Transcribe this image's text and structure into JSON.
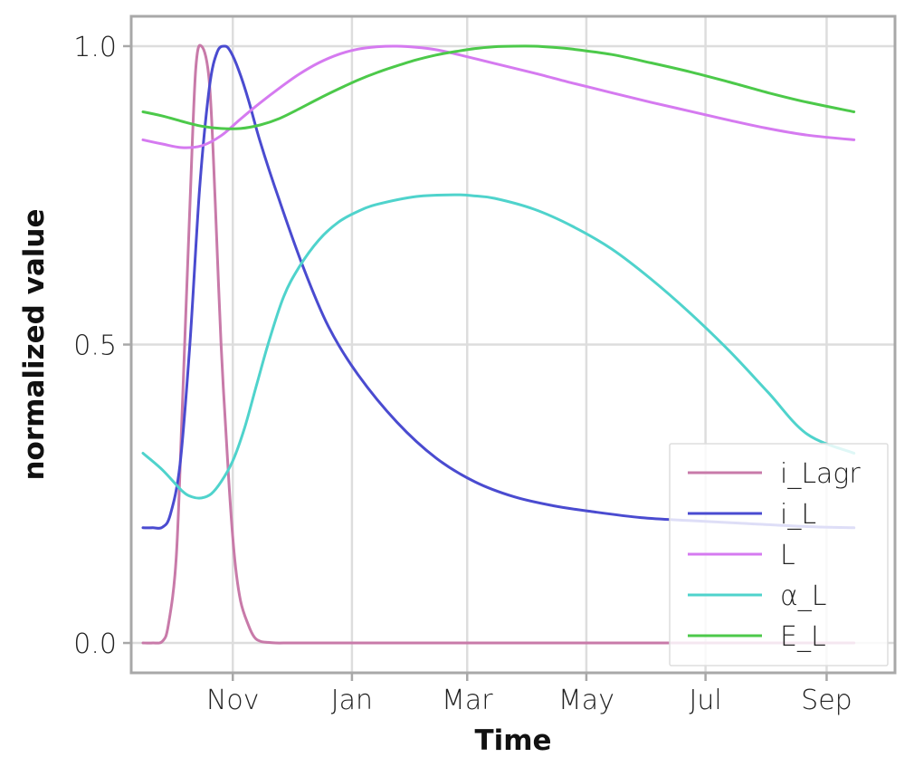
{
  "chart_data": {
    "type": "line",
    "title": "",
    "xlabel": "Time",
    "ylabel": "normalized value",
    "ylim": [
      -0.05,
      1.05
    ],
    "xlim": [
      -6,
      385
    ],
    "x_ticks": [
      {
        "label": "Nov",
        "value": 46
      },
      {
        "label": "Jan",
        "value": 107
      },
      {
        "label": "Mar",
        "value": 166
      },
      {
        "label": "May",
        "value": 227
      },
      {
        "label": "Jul",
        "value": 288
      },
      {
        "label": "Sep",
        "value": 350
      }
    ],
    "y_ticks": [
      {
        "label": "0.0",
        "value": 0.0
      },
      {
        "label": "0.5",
        "value": 0.5
      },
      {
        "label": "1.0",
        "value": 1.0
      }
    ],
    "grid": true,
    "legend_position": "bottom-right",
    "series": [
      {
        "name": "i_Lagr",
        "color": "#c87aa9",
        "x": [
          0,
          5,
          10,
          13,
          17,
          20,
          24,
          27,
          30,
          34,
          37,
          40,
          44,
          47,
          50,
          54,
          57,
          60,
          64,
          68,
          74,
          80,
          100,
          150,
          200,
          250,
          300,
          350,
          364
        ],
        "y": [
          0.0,
          0.0,
          0.003,
          0.03,
          0.14,
          0.38,
          0.73,
          0.96,
          1.0,
          0.94,
          0.74,
          0.5,
          0.27,
          0.14,
          0.07,
          0.03,
          0.01,
          0.003,
          0.001,
          0.0,
          0.0,
          0.0,
          0.0,
          0.0,
          0.0,
          0.0,
          0.0,
          0.0,
          0.0
        ]
      },
      {
        "name": "i_L",
        "color": "#4a4bd0",
        "x": [
          0,
          5,
          10,
          14,
          19,
          24,
          29,
          34,
          38,
          42,
          45,
          49,
          54,
          60,
          70,
          82,
          95,
          110,
          130,
          150,
          170,
          190,
          210,
          230,
          255,
          280,
          310,
          340,
          364
        ],
        "y": [
          0.193,
          0.193,
          0.194,
          0.215,
          0.3,
          0.5,
          0.76,
          0.93,
          0.99,
          1.0,
          0.99,
          0.96,
          0.91,
          0.84,
          0.74,
          0.63,
          0.53,
          0.45,
          0.37,
          0.31,
          0.27,
          0.245,
          0.23,
          0.22,
          0.21,
          0.205,
          0.2,
          0.195,
          0.193
        ]
      },
      {
        "name": "L",
        "color": "#d57af0",
        "x": [
          0,
          10,
          20,
          30,
          40,
          50,
          60,
          70,
          80,
          90,
          100,
          110,
          120,
          130,
          140,
          150,
          160,
          180,
          200,
          220,
          240,
          260,
          280,
          300,
          320,
          340,
          364
        ],
        "y": [
          0.843,
          0.836,
          0.83,
          0.833,
          0.85,
          0.878,
          0.905,
          0.93,
          0.953,
          0.972,
          0.986,
          0.995,
          0.999,
          1.0,
          0.998,
          0.994,
          0.987,
          0.971,
          0.955,
          0.938,
          0.922,
          0.906,
          0.891,
          0.876,
          0.862,
          0.851,
          0.843
        ]
      },
      {
        "name": "α_L",
        "color": "#4fd3cc",
        "x": [
          0,
          10,
          20,
          25,
          30,
          35,
          40,
          46,
          52,
          58,
          64,
          72,
          80,
          90,
          100,
          110,
          120,
          140,
          160,
          170,
          180,
          200,
          220,
          240,
          260,
          280,
          300,
          320,
          340,
          364
        ],
        "y": [
          0.318,
          0.29,
          0.255,
          0.245,
          0.243,
          0.25,
          0.27,
          0.305,
          0.36,
          0.43,
          0.5,
          0.58,
          0.63,
          0.675,
          0.705,
          0.723,
          0.735,
          0.748,
          0.751,
          0.749,
          0.745,
          0.727,
          0.698,
          0.66,
          0.61,
          0.553,
          0.49,
          0.42,
          0.35,
          0.318
        ]
      },
      {
        "name": "E_L",
        "color": "#4cc94a",
        "x": [
          0,
          10,
          20,
          30,
          40,
          50,
          60,
          70,
          80,
          90,
          100,
          110,
          120,
          130,
          140,
          150,
          160,
          170,
          180,
          190,
          200,
          210,
          220,
          240,
          260,
          280,
          300,
          320,
          340,
          364
        ],
        "y": [
          0.89,
          0.883,
          0.874,
          0.866,
          0.862,
          0.862,
          0.868,
          0.879,
          0.895,
          0.912,
          0.928,
          0.943,
          0.956,
          0.967,
          0.977,
          0.985,
          0.991,
          0.996,
          0.999,
          1.0,
          1.0,
          0.998,
          0.995,
          0.986,
          0.972,
          0.957,
          0.94,
          0.922,
          0.906,
          0.89
        ]
      }
    ]
  }
}
